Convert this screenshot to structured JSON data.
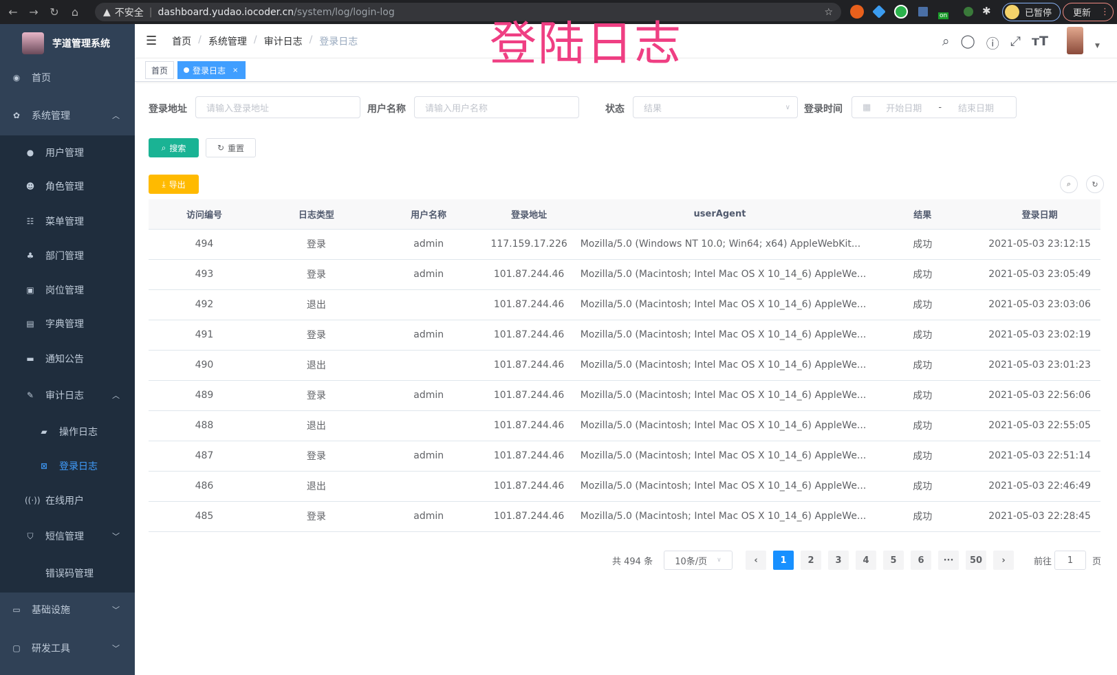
{
  "browser": {
    "warning": "不安全",
    "url_host": "dashboard.yudao.iocoder.cn",
    "url_path": "/system/log/login-log",
    "paused_label": "已暂停",
    "update_label": "更新",
    "ext_badge": "on"
  },
  "overlay_title": "登陆日志",
  "sidebar": {
    "app_name": "芋道管理系统",
    "items": [
      {
        "label": "首页",
        "icon": "dashboard-icon",
        "level": 0
      },
      {
        "label": "系统管理",
        "icon": "gear-icon",
        "level": 0,
        "expanded": true
      },
      {
        "label": "用户管理",
        "icon": "user-icon",
        "level": 1
      },
      {
        "label": "角色管理",
        "icon": "peoples-icon",
        "level": 1
      },
      {
        "label": "菜单管理",
        "icon": "tree-table-icon",
        "level": 1
      },
      {
        "label": "部门管理",
        "icon": "tree-icon",
        "level": 1
      },
      {
        "label": "岗位管理",
        "icon": "post-icon",
        "level": 1
      },
      {
        "label": "字典管理",
        "icon": "dict-icon",
        "level": 1
      },
      {
        "label": "通知公告",
        "icon": "message-icon",
        "level": 1
      },
      {
        "label": "审计日志",
        "icon": "log-icon",
        "level": 1,
        "expanded": true
      },
      {
        "label": "操作日志",
        "icon": "form-icon",
        "level": 2
      },
      {
        "label": "登录日志",
        "icon": "logininfor-icon",
        "level": 2,
        "active": true
      },
      {
        "label": "在线用户",
        "icon": "online-icon",
        "level": 1
      },
      {
        "label": "短信管理",
        "icon": "validcode-icon",
        "level": 1,
        "expanded": false
      },
      {
        "label": "错误码管理",
        "icon": "code-icon",
        "level": 1
      },
      {
        "label": "基础设施",
        "icon": "monitor-icon",
        "level": 0,
        "expanded": false
      },
      {
        "label": "研发工具",
        "icon": "tool-icon",
        "level": 0,
        "expanded": false
      }
    ]
  },
  "navbar": {
    "breadcrumb": [
      "首页",
      "系统管理",
      "审计日志",
      "登录日志"
    ]
  },
  "tags": [
    {
      "label": "首页",
      "active": false
    },
    {
      "label": "登录日志",
      "active": true
    }
  ],
  "filters": {
    "address_label": "登录地址",
    "address_placeholder": "请输入登录地址",
    "user_label": "用户名称",
    "user_placeholder": "请输入用户名称",
    "status_label": "状态",
    "status_placeholder": "结果",
    "time_label": "登录时间",
    "start_placeholder": "开始日期",
    "range_sep": "-",
    "end_placeholder": "结束日期"
  },
  "buttons": {
    "search": "搜索",
    "reset": "重置",
    "export": "导出"
  },
  "colors": {
    "primary": "#1890ff",
    "search_btn": "#1ab394",
    "export_btn": "#ffba00",
    "sidebar": "#304156",
    "active_menu": "#409eff",
    "overlay": "#ef3f83"
  },
  "table": {
    "columns": [
      "访问编号",
      "日志类型",
      "用户名称",
      "登录地址",
      "userAgent",
      "结果",
      "登录日期"
    ],
    "rows": [
      [
        "494",
        "登录",
        "admin",
        "117.159.17.226",
        "Mozilla/5.0 (Windows NT 10.0; Win64; x64) AppleWebKit...",
        "成功",
        "2021-05-03 23:12:15"
      ],
      [
        "493",
        "登录",
        "admin",
        "101.87.244.46",
        "Mozilla/5.0 (Macintosh; Intel Mac OS X 10_14_6) AppleWe...",
        "成功",
        "2021-05-03 23:05:49"
      ],
      [
        "492",
        "退出",
        "",
        "101.87.244.46",
        "Mozilla/5.0 (Macintosh; Intel Mac OS X 10_14_6) AppleWe...",
        "成功",
        "2021-05-03 23:03:06"
      ],
      [
        "491",
        "登录",
        "admin",
        "101.87.244.46",
        "Mozilla/5.0 (Macintosh; Intel Mac OS X 10_14_6) AppleWe...",
        "成功",
        "2021-05-03 23:02:19"
      ],
      [
        "490",
        "退出",
        "",
        "101.87.244.46",
        "Mozilla/5.0 (Macintosh; Intel Mac OS X 10_14_6) AppleWe...",
        "成功",
        "2021-05-03 23:01:23"
      ],
      [
        "489",
        "登录",
        "admin",
        "101.87.244.46",
        "Mozilla/5.0 (Macintosh; Intel Mac OS X 10_14_6) AppleWe...",
        "成功",
        "2021-05-03 22:56:06"
      ],
      [
        "488",
        "退出",
        "",
        "101.87.244.46",
        "Mozilla/5.0 (Macintosh; Intel Mac OS X 10_14_6) AppleWe...",
        "成功",
        "2021-05-03 22:55:05"
      ],
      [
        "487",
        "登录",
        "admin",
        "101.87.244.46",
        "Mozilla/5.0 (Macintosh; Intel Mac OS X 10_14_6) AppleWe...",
        "成功",
        "2021-05-03 22:51:14"
      ],
      [
        "486",
        "退出",
        "",
        "101.87.244.46",
        "Mozilla/5.0 (Macintosh; Intel Mac OS X 10_14_6) AppleWe...",
        "成功",
        "2021-05-03 22:46:49"
      ],
      [
        "485",
        "登录",
        "admin",
        "101.87.244.46",
        "Mozilla/5.0 (Macintosh; Intel Mac OS X 10_14_6) AppleWe...",
        "成功",
        "2021-05-03 22:28:45"
      ]
    ]
  },
  "pagination": {
    "total": "共 494 条",
    "page_size": "10条/页",
    "pages": [
      "1",
      "2",
      "3",
      "4",
      "5",
      "6",
      "···",
      "50"
    ],
    "current": "1",
    "goto_prefix": "前往",
    "goto_value": "1",
    "goto_suffix": "页"
  }
}
